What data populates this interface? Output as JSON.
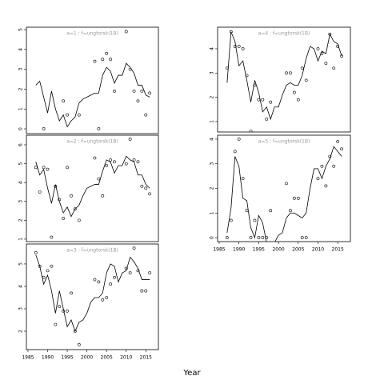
{
  "xlabel": "Year",
  "chart_data": [
    {
      "type": "line",
      "title": "a=1 : f=ungtorsk(1B)",
      "x": [
        1987,
        1988,
        1989,
        1990,
        1991,
        1992,
        1993,
        1994,
        1995,
        1996,
        1997,
        1998,
        1999,
        2000,
        2001,
        2002,
        2003,
        2004,
        2005,
        2006,
        2007,
        2008,
        2009,
        2010,
        2011,
        2012,
        2013,
        2014,
        2015,
        2016
      ],
      "series": [
        {
          "style": "line",
          "color": "#000000",
          "values": [
            2.2,
            2.4,
            1.6,
            0.8,
            1.9,
            1.0,
            0.4,
            0.7,
            0.1,
            0.4,
            0.6,
            1.3,
            1.5,
            1.6,
            1.7,
            1.8,
            1.8,
            2.7,
            3.1,
            2.9,
            2.3,
            2.7,
            2.7,
            3.3,
            3.1,
            2.8,
            2.2,
            2.2,
            1.7,
            1.6
          ]
        },
        {
          "style": "points",
          "color": "#000000",
          "values": [
            null,
            null,
            0.0,
            null,
            null,
            null,
            null,
            1.4,
            0.7,
            null,
            null,
            0.7,
            null,
            null,
            null,
            3.4,
            0.0,
            3.5,
            3.8,
            3.5,
            1.9,
            null,
            null,
            4.9,
            3.0,
            1.9,
            1.4,
            1.9,
            0.7,
            1.8
          ]
        }
      ],
      "xlim": [
        1984.6,
        2018.2
      ],
      "ylim": [
        -0.24,
        5.12
      ],
      "yticks": [
        0,
        1,
        2,
        3,
        4,
        5
      ]
    },
    {
      "type": "line",
      "title": "a=2 : f=ungtorsk(1B)",
      "x": [
        1987,
        1988,
        1989,
        1990,
        1991,
        1992,
        1993,
        1994,
        1995,
        1996,
        1997,
        1998,
        1999,
        2000,
        2001,
        2002,
        2003,
        2004,
        2005,
        2006,
        2007,
        2008,
        2009,
        2010,
        2011,
        2012,
        2013,
        2014,
        2015,
        2016
      ],
      "series": [
        {
          "style": "line",
          "color": "#000000",
          "values": [
            5.1,
            4.4,
            4.7,
            3.7,
            2.9,
            3.9,
            3.0,
            2.4,
            2.7,
            2.2,
            2.6,
            2.8,
            3.3,
            3.7,
            3.8,
            3.9,
            3.9,
            4.6,
            5.2,
            5.1,
            4.5,
            4.9,
            4.9,
            5.4,
            5.2,
            5.1,
            4.4,
            4.4,
            3.9,
            3.7
          ]
        },
        {
          "style": "points",
          "color": "#000000",
          "values": [
            4.8,
            3.5,
            4.8,
            4.7,
            1.1,
            3.8,
            3.1,
            2.1,
            4.8,
            3.3,
            2.6,
            2.0,
            null,
            null,
            null,
            5.3,
            4.2,
            3.3,
            4.9,
            5.2,
            5.1,
            null,
            null,
            5.0,
            6.3,
            5.2,
            5.1,
            3.8,
            3.7,
            3.4
          ]
        }
      ],
      "xlim": [
        1984.6,
        2018.2
      ],
      "ylim": [
        0.87,
        6.51
      ],
      "yticks": [
        1,
        2,
        3,
        4,
        5,
        6
      ]
    },
    {
      "type": "line",
      "title": "a=3 : f=ungtorsk(1B)",
      "x": [
        1987,
        1988,
        1989,
        1990,
        1991,
        1992,
        1993,
        1994,
        1995,
        1996,
        1997,
        1998,
        1999,
        2000,
        2001,
        2002,
        2003,
        2004,
        2005,
        2006,
        2007,
        2008,
        2009,
        2010,
        2011,
        2012,
        2013,
        2014,
        2015,
        2016
      ],
      "series": [
        {
          "style": "line",
          "color": "#000000",
          "values": [
            5.4,
            4.9,
            4.1,
            4.5,
            3.8,
            2.8,
            3.8,
            3.0,
            2.2,
            2.5,
            2.0,
            2.4,
            2.5,
            2.8,
            3.3,
            3.5,
            3.5,
            3.7,
            4.6,
            5.0,
            4.9,
            4.2,
            4.6,
            4.7,
            5.3,
            5.1,
            4.8,
            4.3,
            4.3,
            4.3
          ]
        },
        {
          "style": "points",
          "color": "#000000",
          "values": [
            5.5,
            4.9,
            4.4,
            4.7,
            4.9,
            2.3,
            3.1,
            2.9,
            2.9,
            3.7,
            2.0,
            1.4,
            null,
            null,
            null,
            4.3,
            4.2,
            3.4,
            3.5,
            4.1,
            4.4,
            null,
            null,
            4.8,
            4.6,
            5.7,
            4.7,
            3.8,
            3.8,
            4.6
          ]
        }
      ],
      "xlim": [
        1984.6,
        2018.2
      ],
      "ylim": [
        1.18,
        5.89
      ],
      "yticks": [
        2,
        3,
        4,
        5
      ],
      "xticks": [
        1985,
        1990,
        1995,
        2000,
        2005,
        2010,
        2015
      ]
    },
    {
      "type": "line",
      "title": "a=4 : f=ungtorsk(1B)",
      "x": [
        1987,
        1988,
        1989,
        1990,
        1991,
        1992,
        1993,
        1994,
        1995,
        1996,
        1997,
        1998,
        1999,
        2000,
        2001,
        2002,
        2003,
        2004,
        2005,
        2006,
        2007,
        2008,
        2009,
        2010,
        2011,
        2012,
        2013,
        2014,
        2015,
        2016
      ],
      "series": [
        {
          "style": "line",
          "color": "#000000",
          "values": [
            2.6,
            4.7,
            4.3,
            3.3,
            3.5,
            2.7,
            1.8,
            2.7,
            2.2,
            1.4,
            1.6,
            1.1,
            1.6,
            1.6,
            2.1,
            2.5,
            2.6,
            2.5,
            2.5,
            2.9,
            3.6,
            4.1,
            4.0,
            3.5,
            3.9,
            3.8,
            4.6,
            4.3,
            4.2,
            3.7
          ]
        },
        {
          "style": "points",
          "color": "#000000",
          "values": [
            3.2,
            4.7,
            4.1,
            4.1,
            4.0,
            2.9,
            0.6,
            2.5,
            1.9,
            1.9,
            1.1,
            1.8,
            null,
            null,
            null,
            3.0,
            3.0,
            2.2,
            1.9,
            3.2,
            2.7,
            null,
            null,
            4.0,
            3.8,
            3.4,
            4.6,
            3.2,
            4.1,
            3.7
          ]
        }
      ],
      "xlim": [
        1984.6,
        2018.2
      ],
      "ylim": [
        0.57,
        4.89
      ],
      "yticks": [
        1,
        2,
        3,
        4
      ]
    },
    {
      "type": "line",
      "title": "a=5 : f=ungtorsk(1B)",
      "x": [
        1987,
        1988,
        1989,
        1990,
        1991,
        1992,
        1993,
        1994,
        1995,
        1996,
        1997,
        1998,
        1999,
        2000,
        2001,
        2002,
        2003,
        2004,
        2005,
        2006,
        2007,
        2008,
        2009,
        2010,
        2011,
        2012,
        2013,
        2014,
        2015,
        2016
      ],
      "series": [
        {
          "style": "line",
          "color": "#000000",
          "values": [
            0.2,
            1.2,
            3.3,
            2.9,
            1.6,
            1.5,
            0.4,
            0.0,
            0.9,
            0.6,
            -0.2,
            -0.3,
            -0.2,
            0.1,
            0.2,
            0.8,
            1.0,
            1.0,
            0.9,
            0.8,
            1.0,
            2.0,
            2.8,
            2.8,
            2.4,
            2.9,
            3.2,
            3.7,
            3.5,
            3.3
          ]
        },
        {
          "style": "points",
          "color": "#000000",
          "values": [
            0.0,
            0.7,
            3.5,
            4.0,
            2.4,
            1.1,
            0.0,
            0.7,
            0.0,
            0.0,
            0.0,
            1.1,
            null,
            null,
            null,
            2.2,
            1.1,
            1.6,
            1.6,
            0.0,
            0.0,
            null,
            null,
            2.4,
            2.9,
            2.1,
            3.3,
            2.9,
            3.9,
            3.6
          ]
        }
      ],
      "xlim": [
        1984.6,
        2018.2
      ],
      "ylim": [
        -0.16,
        4.16
      ],
      "yticks": [
        0,
        1,
        2,
        3,
        4
      ],
      "xticks": [
        1985,
        1990,
        1995,
        2000,
        2005,
        2010,
        2015
      ]
    }
  ]
}
